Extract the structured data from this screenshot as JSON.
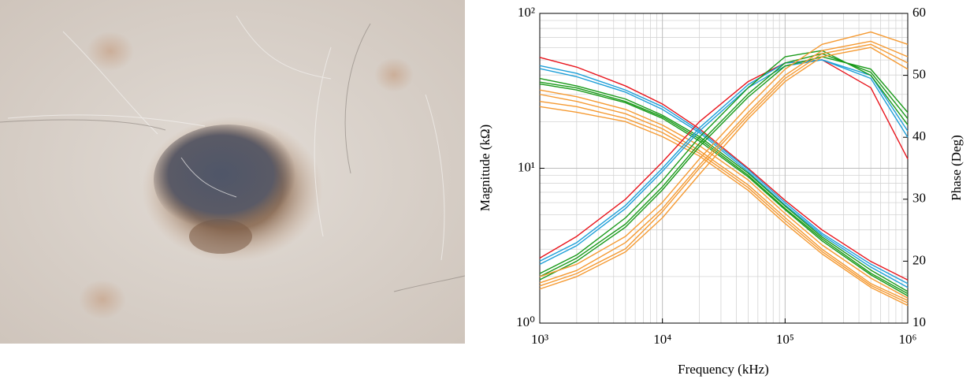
{
  "chart_data": {
    "type": "line",
    "xlabel": "Frequency (kHz)",
    "ylabel": "Magnitude (kΩ)",
    "y2label": "Phase (Deg)",
    "xscale": "log",
    "yscale": "log",
    "grid": true,
    "x": [
      1000,
      2000,
      5000,
      10000,
      20000,
      50000,
      100000,
      200000,
      500000,
      1000000
    ],
    "xlim": [
      1000,
      1000000
    ],
    "ylim": [
      1,
      100
    ],
    "y2lim": [
      10,
      60
    ],
    "xticks": [
      {
        "value": 1000,
        "label": "10³"
      },
      {
        "value": 10000,
        "label": "10⁴"
      },
      {
        "value": 100000,
        "label": "10⁵"
      },
      {
        "value": 1000000,
        "label": "10⁶"
      }
    ],
    "yticks": [
      {
        "value": 1,
        "label": "10⁰"
      },
      {
        "value": 10,
        "label": "10¹"
      },
      {
        "value": 100,
        "label": "10²"
      }
    ],
    "y2ticks": [
      10,
      20,
      30,
      40,
      50,
      60
    ],
    "series": [
      {
        "color": "#e8141c",
        "values": [
          52,
          45,
          34,
          26,
          18,
          10,
          6.2,
          4.0,
          2.5,
          1.9
        ]
      },
      {
        "color": "#1e9fd8",
        "values": [
          46,
          41,
          32,
          25,
          17.5,
          9.8,
          6.0,
          3.8,
          2.4,
          1.8
        ]
      },
      {
        "color": "#1e9fd8",
        "values": [
          44,
          39,
          31,
          24,
          17,
          9.5,
          5.8,
          3.7,
          2.3,
          1.7
        ]
      },
      {
        "color": "#1a9a1a",
        "values": [
          38,
          34,
          28,
          22,
          16,
          9.3,
          5.7,
          3.6,
          2.2,
          1.6
        ]
      },
      {
        "color": "#1a9a1a",
        "values": [
          36,
          33,
          27,
          21.5,
          15.5,
          9.0,
          5.5,
          3.5,
          2.1,
          1.55
        ]
      },
      {
        "color": "#1a9a1a",
        "values": [
          35,
          32,
          26.5,
          21,
          15,
          8.8,
          5.4,
          3.4,
          2.05,
          1.5
        ]
      },
      {
        "color": "#f59a32",
        "values": [
          32,
          29,
          24,
          19,
          14,
          8.4,
          5.1,
          3.2,
          1.95,
          1.45
        ]
      },
      {
        "color": "#f59a32",
        "values": [
          30,
          27,
          22.5,
          18,
          13,
          7.8,
          4.8,
          3.0,
          1.8,
          1.4
        ]
      },
      {
        "color": "#f59a32",
        "values": [
          27,
          25,
          21,
          17,
          12.5,
          7.5,
          4.6,
          2.9,
          1.75,
          1.35
        ]
      },
      {
        "color": "#f59a32",
        "values": [
          25,
          23,
          20,
          16,
          12,
          7.2,
          4.4,
          2.8,
          1.7,
          1.3
        ]
      },
      {
        "color": "#e8141c",
        "axis": "y2",
        "values": [
          20.5,
          24,
          30,
          36,
          42.5,
          49,
          52,
          52.5,
          48,
          36.5
        ]
      },
      {
        "color": "#1e9fd8",
        "axis": "y2",
        "values": [
          20,
          23,
          29,
          35,
          41.5,
          48.5,
          52,
          52.5,
          49.5,
          40
        ]
      },
      {
        "color": "#1e9fd8",
        "axis": "y2",
        "values": [
          19.5,
          22.5,
          28.5,
          34.5,
          41,
          48,
          51.5,
          52.5,
          50,
          41
        ]
      },
      {
        "color": "#1a9a1a",
        "axis": "y2",
        "values": [
          18,
          21,
          27,
          33,
          40,
          48,
          53,
          54,
          50,
          42
        ]
      },
      {
        "color": "#1a9a1a",
        "axis": "y2",
        "values": [
          17.5,
          20.5,
          26,
          32,
          39,
          47,
          52,
          53.5,
          50.5,
          43
        ]
      },
      {
        "color": "#1a9a1a",
        "axis": "y2",
        "values": [
          17,
          20,
          25.5,
          31.5,
          38.5,
          46.5,
          51.5,
          53,
          51,
          44
        ]
      },
      {
        "color": "#f59a32",
        "axis": "y2",
        "values": [
          17.5,
          19.5,
          24,
          29.5,
          36.5,
          45,
          51,
          55,
          57,
          55
        ]
      },
      {
        "color": "#f59a32",
        "axis": "y2",
        "values": [
          16.5,
          18.5,
          23,
          28.5,
          35.5,
          44,
          50,
          54,
          55.5,
          53
        ]
      },
      {
        "color": "#f59a32",
        "axis": "y2",
        "values": [
          16,
          18,
          22,
          28,
          35,
          43.5,
          49.5,
          53.5,
          55,
          52
        ]
      },
      {
        "color": "#f59a32",
        "axis": "y2",
        "values": [
          15.5,
          17.5,
          21.5,
          27,
          34,
          43,
          49,
          53,
          54.5,
          51
        ]
      }
    ]
  }
}
